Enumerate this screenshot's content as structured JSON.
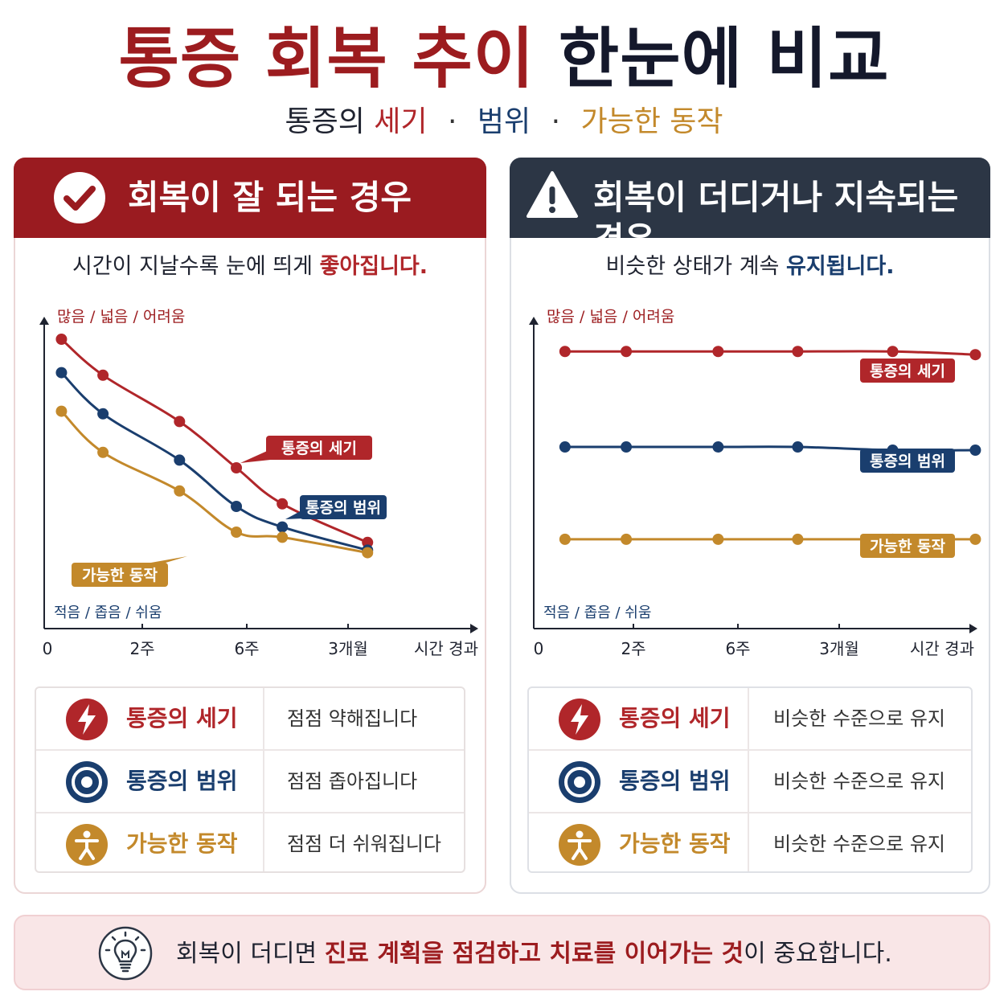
{
  "title": {
    "part1": "통증 회복 추이",
    "part2": "한눈에 비교"
  },
  "subtitle": {
    "prefix": "통증의",
    "intensity": "세기",
    "range": "범위",
    "ability": "가능한 동작",
    "sep": "·"
  },
  "colors": {
    "red": "#b0262a",
    "blue": "#1a3e6e",
    "gold": "#c3892b",
    "good_header": "#9a1b20",
    "bad_header": "#2c3645"
  },
  "panels": {
    "good": {
      "header": "회복이 잘 되는 경우",
      "header_icon": "check-circle-icon",
      "sub_prefix": "시간이 지날수록 눈에 띄게",
      "sub_highlight": "좋아집니다."
    },
    "bad": {
      "header": "회복이 더디거나 지속되는 경우",
      "header_icon": "warning-triangle-icon",
      "sub_prefix": "비슷한 상태가 계속",
      "sub_highlight": "유지됩니다."
    }
  },
  "chart_data": [
    {
      "type": "line",
      "ylabel_top": "많음 / 넓음 / 어려움",
      "ylabel_bottom": "적음 / 좁음 / 쉬움",
      "x_ticks": [
        "0",
        "2주",
        "6주",
        "3개월",
        "시간 경과"
      ],
      "ylim": [
        0,
        100
      ],
      "grid": false,
      "series": [
        {
          "name": "통증의 세기",
          "color": "#b0262a",
          "x": [
            0.2,
            2.1,
            5.6,
            8.2,
            10.3,
            14.2
          ],
          "values": [
            90,
            76,
            58,
            40,
            26,
            11
          ]
        },
        {
          "name": "통증의 범위",
          "color": "#1a3e6e",
          "x": [
            0.2,
            2.1,
            5.6,
            8.2,
            10.3,
            14.2
          ],
          "values": [
            77,
            61,
            43,
            25,
            17,
            8
          ]
        },
        {
          "name": "가능한 동작",
          "color": "#c3892b",
          "x": [
            0.2,
            2.1,
            5.6,
            8.2,
            10.3,
            14.2
          ],
          "values": [
            62,
            46,
            31,
            15,
            13,
            7
          ]
        }
      ]
    },
    {
      "type": "line",
      "ylabel_top": "많음 / 넓음 / 어려움",
      "ylabel_bottom": "적음 / 좁음 / 쉬움",
      "x_ticks": [
        "0",
        "2주",
        "6주",
        "3개월",
        "시간 경과"
      ],
      "ylim": [
        0,
        100
      ],
      "grid": false,
      "series": [
        {
          "name": "통증의 세기",
          "color": "#b0262a",
          "x": [
            0.6,
            2.6,
            5.6,
            8.2,
            11.3,
            14.0
          ],
          "values": [
            81,
            81,
            81,
            81,
            81,
            80
          ]
        },
        {
          "name": "통증의 범위",
          "color": "#1a3e6e",
          "x": [
            0.6,
            2.6,
            5.6,
            8.2,
            11.3,
            14.0
          ],
          "values": [
            51,
            51,
            51,
            51,
            50,
            50
          ]
        },
        {
          "name": "가능한 동작",
          "color": "#c3892b",
          "x": [
            0.6,
            2.6,
            5.6,
            8.2,
            11.3,
            14.0
          ],
          "values": [
            22,
            22,
            22,
            22,
            22,
            22
          ]
        }
      ]
    }
  ],
  "legend_rows": {
    "good": [
      {
        "name": "통증의 세기",
        "desc": "점점 약해집니다",
        "icon": "lightning-icon"
      },
      {
        "name": "통증의 범위",
        "desc": "점점 좁아집니다",
        "icon": "target-icon"
      },
      {
        "name": "가능한 동작",
        "desc": "점점 더 쉬워집니다",
        "icon": "person-icon"
      }
    ],
    "bad": [
      {
        "name": "통증의 세기",
        "desc": "비슷한 수준으로 유지",
        "icon": "lightning-icon"
      },
      {
        "name": "통증의 범위",
        "desc": "비슷한 수준으로 유지",
        "icon": "target-icon"
      },
      {
        "name": "가능한 동작",
        "desc": "비슷한 수준으로 유지",
        "icon": "person-icon"
      }
    ]
  },
  "tip": {
    "icon": "lightbulb-icon",
    "prefix": "회복이 더디면",
    "emphasis": "진료 계획을 점검하고 치료를 이어가는 것",
    "suffix": "이 중요합니다."
  }
}
